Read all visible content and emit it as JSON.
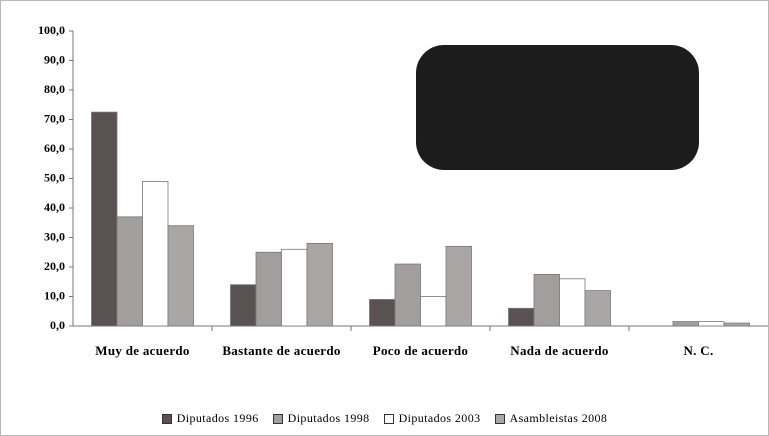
{
  "chart_data": {
    "type": "bar",
    "categories": [
      "Muy de acuerdo",
      "Bastante de acuerdo",
      "Poco de acuerdo",
      "Nada de acuerdo",
      "N. C."
    ],
    "series": [
      {
        "name": "Diputados 1996",
        "color": "#5a5252",
        "values": [
          72.5,
          14,
          9,
          6,
          0
        ]
      },
      {
        "name": "Diputados 1998",
        "color": "#a29e9e",
        "values": [
          37,
          25,
          21,
          17.5,
          1.5
        ]
      },
      {
        "name": "Diputados 2003",
        "color": "#ffffff",
        "values": [
          49,
          26,
          10,
          16,
          1.5
        ]
      },
      {
        "name": "Asambleistas 2008",
        "color": "#aaa6a6",
        "values": [
          34,
          28,
          27,
          12,
          1
        ]
      }
    ],
    "ylim": [
      0,
      100
    ],
    "yticks": [
      {
        "value": 0,
        "label": "0,0"
      },
      {
        "value": 10,
        "label": "10,0"
      },
      {
        "value": 20,
        "label": "20,0"
      },
      {
        "value": 30,
        "label": "30,0"
      },
      {
        "value": 40,
        "label": "40,0"
      },
      {
        "value": 50,
        "label": "50,0"
      },
      {
        "value": 60,
        "label": "60,0"
      },
      {
        "value": 70,
        "label": "70,0"
      },
      {
        "value": 80,
        "label": "80,0"
      },
      {
        "value": 90,
        "label": "90,0"
      },
      {
        "value": 100,
        "label": "100,0"
      }
    ],
    "grid": false
  }
}
